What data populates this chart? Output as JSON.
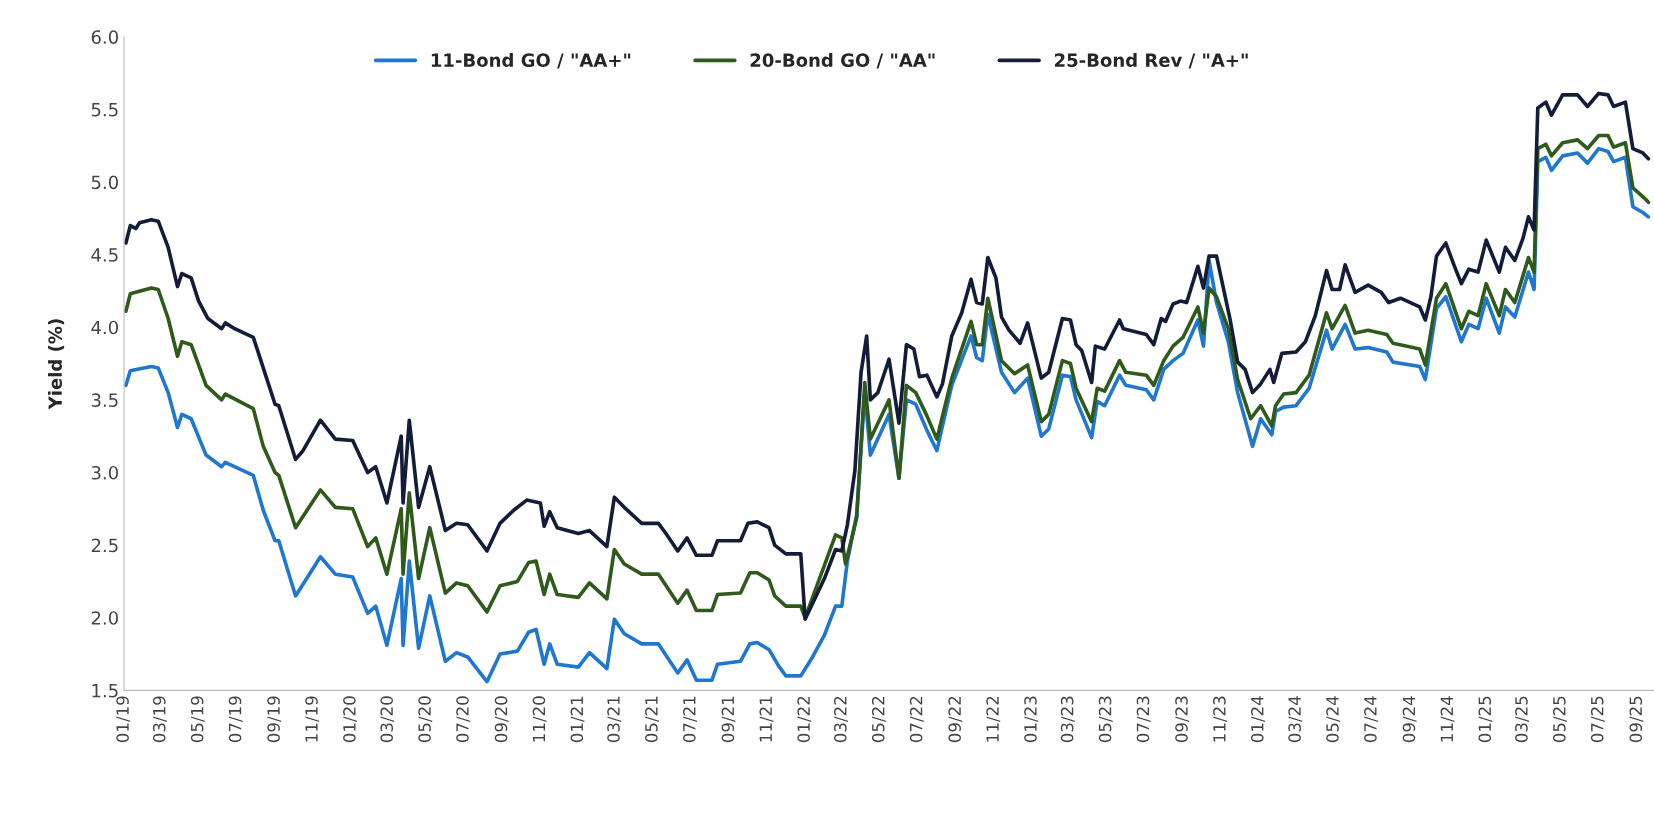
{
  "chart_data": {
    "type": "line",
    "ylabel": "Yield (%)",
    "xlim": [
      "2019-01-01",
      "2025-09-28"
    ],
    "ylim": [
      1.5,
      6.0
    ],
    "yticks": [
      {
        "value": 1.5,
        "label": "1.5"
      },
      {
        "value": 2.0,
        "label": "2.0"
      },
      {
        "value": 2.5,
        "label": "2.5"
      },
      {
        "value": 3.0,
        "label": "3.0"
      },
      {
        "value": 3.5,
        "label": "3.5"
      },
      {
        "value": 4.0,
        "label": "4.0"
      },
      {
        "value": 4.5,
        "label": "4.5"
      },
      {
        "value": 5.0,
        "label": "5.0"
      },
      {
        "value": 5.5,
        "label": "5.5"
      },
      {
        "value": 6.0,
        "label": "6.0"
      }
    ],
    "xticks": [
      {
        "value": "2019-01",
        "label": "01/19"
      },
      {
        "value": "2019-03",
        "label": "03/19"
      },
      {
        "value": "2019-05",
        "label": "05/19"
      },
      {
        "value": "2019-07",
        "label": "07/19"
      },
      {
        "value": "2019-09",
        "label": "09/19"
      },
      {
        "value": "2019-11",
        "label": "11/19"
      },
      {
        "value": "2020-01",
        "label": "01/20"
      },
      {
        "value": "2020-03",
        "label": "03/20"
      },
      {
        "value": "2020-05",
        "label": "05/20"
      },
      {
        "value": "2020-07",
        "label": "07/20"
      },
      {
        "value": "2020-09",
        "label": "09/20"
      },
      {
        "value": "2020-11",
        "label": "11/20"
      },
      {
        "value": "2021-01",
        "label": "01/21"
      },
      {
        "value": "2021-03",
        "label": "03/21"
      },
      {
        "value": "2021-05",
        "label": "05/21"
      },
      {
        "value": "2021-07",
        "label": "07/21"
      },
      {
        "value": "2021-09",
        "label": "09/21"
      },
      {
        "value": "2021-11",
        "label": "11/21"
      },
      {
        "value": "2022-01",
        "label": "01/22"
      },
      {
        "value": "2022-03",
        "label": "03/22"
      },
      {
        "value": "2022-05",
        "label": "05/22"
      },
      {
        "value": "2022-07",
        "label": "07/22"
      },
      {
        "value": "2022-09",
        "label": "09/22"
      },
      {
        "value": "2022-11",
        "label": "11/22"
      },
      {
        "value": "2023-01",
        "label": "01/23"
      },
      {
        "value": "2023-03",
        "label": "03/23"
      },
      {
        "value": "2023-05",
        "label": "05/23"
      },
      {
        "value": "2023-07",
        "label": "07/23"
      },
      {
        "value": "2023-09",
        "label": "09/23"
      },
      {
        "value": "2023-11",
        "label": "11/23"
      },
      {
        "value": "2024-01",
        "label": "01/24"
      },
      {
        "value": "2024-03",
        "label": "03/24"
      },
      {
        "value": "2024-05",
        "label": "05/24"
      },
      {
        "value": "2024-07",
        "label": "07/24"
      },
      {
        "value": "2024-09",
        "label": "09/24"
      },
      {
        "value": "2024-11",
        "label": "11/24"
      },
      {
        "value": "2025-01",
        "label": "01/25"
      },
      {
        "value": "2025-03",
        "label": "03/25"
      },
      {
        "value": "2025-05",
        "label": "05/25"
      },
      {
        "value": "2025-07",
        "label": "07/25"
      },
      {
        "value": "2025-09",
        "label": "09/25"
      }
    ],
    "grid": false,
    "legend": "top",
    "marker": "none",
    "line_style": "solid",
    "series": [
      {
        "name": "11-Bond GO / \"AA+\"",
        "color": "#1f77d0",
        "x": [
          "2019-01-04",
          "2019-01-11",
          "2019-02-14",
          "2019-02-25",
          "2019-03-13",
          "2019-03-28",
          "2019-04-04",
          "2019-04-19",
          "2019-05-13",
          "2019-06-07",
          "2019-06-13",
          "2019-07-28",
          "2019-08-13",
          "2019-09-01",
          "2019-09-07",
          "2019-10-04",
          "2019-11-13",
          "2019-12-07",
          "2020-01-04",
          "2020-01-28",
          "2020-02-10",
          "2020-02-28",
          "2020-03-22",
          "2020-03-25",
          "2020-04-04",
          "2020-04-19",
          "2020-05-07",
          "2020-06-01",
          "2020-06-19",
          "2020-07-07",
          "2020-08-07",
          "2020-08-28",
          "2020-09-25",
          "2020-10-13",
          "2020-10-25",
          "2020-11-07",
          "2020-11-16",
          "2020-11-28",
          "2021-01-01",
          "2021-01-19",
          "2021-02-16",
          "2021-02-28",
          "2021-03-16",
          "2021-04-13",
          "2021-05-10",
          "2021-06-10",
          "2021-06-25",
          "2021-07-10",
          "2021-08-04",
          "2021-08-13",
          "2021-09-19",
          "2021-10-04",
          "2021-10-16",
          "2021-11-04",
          "2021-11-19",
          "2021-12-01",
          "2021-12-25",
          "2022-01-13",
          "2022-02-01",
          "2022-02-19",
          "2022-03-01",
          "2022-03-10",
          "2022-03-25",
          "2022-04-07",
          "2022-04-16",
          "2022-05-16",
          "2022-06-01",
          "2022-06-13",
          "2022-06-28",
          "2022-07-16",
          "2022-08-01",
          "2022-08-25",
          "2022-09-25",
          "2022-10-04",
          "2022-10-13",
          "2022-10-22",
          "2022-11-13",
          "2022-12-04",
          "2022-12-25",
          "2023-01-16",
          "2023-01-28",
          "2023-02-19",
          "2023-03-04",
          "2023-03-13",
          "2023-04-07",
          "2023-04-16",
          "2023-04-28",
          "2023-05-22",
          "2023-06-01",
          "2023-07-04",
          "2023-07-16",
          "2023-08-01",
          "2023-08-16",
          "2023-09-01",
          "2023-09-25",
          "2023-10-04",
          "2023-10-13",
          "2023-10-25",
          "2023-11-13",
          "2023-11-28",
          "2023-12-22",
          "2024-01-04",
          "2024-01-22",
          "2024-01-28",
          "2024-02-10",
          "2024-03-01",
          "2024-03-22",
          "2024-04-19",
          "2024-04-28",
          "2024-05-19",
          "2024-06-04",
          "2024-06-25",
          "2024-07-25",
          "2024-08-04",
          "2024-09-16",
          "2024-09-25",
          "2024-10-13",
          "2024-10-28",
          "2024-11-22",
          "2024-12-04",
          "2024-12-19",
          "2025-01-01",
          "2025-01-22",
          "2025-02-01",
          "2025-02-16",
          "2025-03-10",
          "2025-03-19",
          "2025-03-25",
          "2025-04-07",
          "2025-04-16",
          "2025-05-04",
          "2025-05-28",
          "2025-06-13",
          "2025-07-01",
          "2025-07-16",
          "2025-07-25",
          "2025-08-13",
          "2025-08-25",
          "2025-09-10",
          "2025-09-19"
        ],
        "values": [
          3.6,
          3.7,
          3.73,
          3.72,
          3.55,
          3.31,
          3.4,
          3.37,
          3.12,
          3.04,
          3.07,
          2.98,
          2.74,
          2.53,
          2.53,
          2.15,
          2.42,
          2.3,
          2.28,
          2.03,
          2.08,
          1.81,
          2.27,
          1.81,
          2.39,
          1.79,
          2.15,
          1.7,
          1.76,
          1.73,
          1.56,
          1.75,
          1.77,
          1.9,
          1.92,
          1.68,
          1.82,
          1.68,
          1.66,
          1.76,
          1.65,
          1.99,
          1.89,
          1.82,
          1.82,
          1.62,
          1.71,
          1.57,
          1.57,
          1.68,
          1.7,
          1.82,
          1.83,
          1.78,
          1.67,
          1.6,
          1.6,
          1.73,
          1.88,
          2.08,
          2.08,
          2.39,
          2.71,
          3.55,
          3.12,
          3.4,
          2.96,
          3.5,
          3.47,
          3.29,
          3.15,
          3.6,
          3.94,
          3.79,
          3.77,
          4.09,
          3.69,
          3.55,
          3.65,
          3.25,
          3.3,
          3.67,
          3.66,
          3.5,
          3.24,
          3.49,
          3.46,
          3.67,
          3.6,
          3.57,
          3.5,
          3.71,
          3.77,
          3.82,
          4.05,
          3.87,
          4.46,
          4.17,
          3.9,
          3.55,
          3.18,
          3.37,
          3.26,
          3.42,
          3.45,
          3.46,
          3.58,
          3.98,
          3.85,
          4.02,
          3.85,
          3.86,
          3.83,
          3.76,
          3.73,
          3.64,
          4.13,
          4.21,
          3.9,
          4.02,
          3.99,
          4.2,
          3.96,
          4.14,
          4.07,
          4.38,
          4.26,
          5.14,
          5.17,
          5.08,
          5.18,
          5.2,
          5.13,
          5.23,
          5.21,
          5.14,
          5.17,
          4.83,
          4.79,
          4.76
        ]
      },
      {
        "name": "20-Bond GO / \"AA\"",
        "color": "#2f5a1c",
        "x": [
          "2019-01-04",
          "2019-01-11",
          "2019-02-14",
          "2019-02-25",
          "2019-03-13",
          "2019-03-28",
          "2019-04-04",
          "2019-04-19",
          "2019-05-13",
          "2019-06-07",
          "2019-06-13",
          "2019-07-28",
          "2019-08-13",
          "2019-09-01",
          "2019-09-07",
          "2019-10-04",
          "2019-11-13",
          "2019-12-07",
          "2020-01-04",
          "2020-01-28",
          "2020-02-10",
          "2020-02-28",
          "2020-03-22",
          "2020-03-25",
          "2020-04-04",
          "2020-04-19",
          "2020-05-07",
          "2020-06-01",
          "2020-06-19",
          "2020-07-07",
          "2020-08-07",
          "2020-08-28",
          "2020-09-25",
          "2020-10-13",
          "2020-10-25",
          "2020-11-07",
          "2020-11-16",
          "2020-11-28",
          "2021-01-01",
          "2021-01-19",
          "2021-02-16",
          "2021-02-28",
          "2021-03-16",
          "2021-04-13",
          "2021-05-10",
          "2021-06-10",
          "2021-06-25",
          "2021-07-10",
          "2021-08-04",
          "2021-08-13",
          "2021-09-19",
          "2021-10-04",
          "2021-10-16",
          "2021-11-04",
          "2021-11-13",
          "2021-12-01",
          "2021-12-25",
          "2022-01-01",
          "2022-02-01",
          "2022-02-19",
          "2022-03-01",
          "2022-03-07",
          "2022-03-25",
          "2022-04-07",
          "2022-04-16",
          "2022-05-16",
          "2022-06-01",
          "2022-06-13",
          "2022-06-28",
          "2022-07-16",
          "2022-08-01",
          "2022-08-25",
          "2022-09-25",
          "2022-10-04",
          "2022-10-13",
          "2022-10-22",
          "2022-11-13",
          "2022-12-04",
          "2022-12-25",
          "2023-01-16",
          "2023-01-28",
          "2023-02-19",
          "2023-03-04",
          "2023-03-13",
          "2023-04-07",
          "2023-04-16",
          "2023-04-28",
          "2023-05-22",
          "2023-06-01",
          "2023-07-04",
          "2023-07-16",
          "2023-08-01",
          "2023-08-16",
          "2023-09-01",
          "2023-09-25",
          "2023-10-04",
          "2023-10-13",
          "2023-10-25",
          "2023-11-13",
          "2023-11-28",
          "2023-12-19",
          "2024-01-04",
          "2024-01-22",
          "2024-01-28",
          "2024-02-10",
          "2024-03-01",
          "2024-03-22",
          "2024-04-19",
          "2024-04-28",
          "2024-05-19",
          "2024-06-04",
          "2024-06-25",
          "2024-07-25",
          "2024-08-04",
          "2024-09-16",
          "2024-09-25",
          "2024-10-13",
          "2024-10-28",
          "2024-11-22",
          "2024-12-04",
          "2024-12-19",
          "2025-01-01",
          "2025-01-22",
          "2025-02-01",
          "2025-02-16",
          "2025-03-10",
          "2025-03-19",
          "2025-03-25",
          "2025-04-07",
          "2025-04-16",
          "2025-05-04",
          "2025-05-28",
          "2025-06-13",
          "2025-07-01",
          "2025-07-16",
          "2025-07-25",
          "2025-08-13",
          "2025-08-25",
          "2025-09-10",
          "2025-09-19"
        ],
        "values": [
          4.11,
          4.23,
          4.27,
          4.26,
          4.06,
          3.8,
          3.9,
          3.88,
          3.6,
          3.5,
          3.54,
          3.44,
          3.18,
          3.0,
          2.98,
          2.62,
          2.88,
          2.76,
          2.75,
          2.49,
          2.55,
          2.3,
          2.75,
          2.3,
          2.86,
          2.27,
          2.62,
          2.17,
          2.24,
          2.22,
          2.04,
          2.22,
          2.25,
          2.38,
          2.39,
          2.16,
          2.3,
          2.16,
          2.14,
          2.24,
          2.13,
          2.47,
          2.37,
          2.3,
          2.3,
          2.1,
          2.19,
          2.05,
          2.05,
          2.16,
          2.17,
          2.31,
          2.31,
          2.26,
          2.15,
          2.08,
          2.08,
          2.0,
          2.36,
          2.57,
          2.55,
          2.37,
          2.69,
          3.62,
          3.23,
          3.5,
          2.96,
          3.6,
          3.55,
          3.39,
          3.23,
          3.65,
          4.04,
          3.88,
          3.88,
          4.2,
          3.77,
          3.68,
          3.74,
          3.35,
          3.4,
          3.77,
          3.75,
          3.58,
          3.35,
          3.58,
          3.56,
          3.77,
          3.69,
          3.67,
          3.6,
          3.77,
          3.87,
          3.93,
          4.14,
          3.96,
          4.27,
          4.21,
          3.99,
          3.64,
          3.37,
          3.46,
          3.32,
          3.46,
          3.54,
          3.55,
          3.67,
          4.1,
          3.99,
          4.15,
          3.96,
          3.98,
          3.95,
          3.89,
          3.85,
          3.74,
          4.2,
          4.3,
          3.99,
          4.11,
          4.08,
          4.3,
          4.08,
          4.26,
          4.17,
          4.48,
          4.38,
          5.23,
          5.26,
          5.18,
          5.27,
          5.29,
          5.23,
          5.32,
          5.32,
          5.24,
          5.27,
          4.96,
          4.9,
          4.86
        ]
      },
      {
        "name": "25-Bond Rev / \"A+\"",
        "color": "#131c38",
        "x": [
          "2019-01-04",
          "2019-01-11",
          "2019-01-20",
          "2019-01-26",
          "2019-02-14",
          "2019-02-25",
          "2019-03-13",
          "2019-03-28",
          "2019-04-04",
          "2019-04-19",
          "2019-05-01",
          "2019-05-16",
          "2019-06-07",
          "2019-06-13",
          "2019-06-28",
          "2019-07-28",
          "2019-08-13",
          "2019-09-01",
          "2019-09-07",
          "2019-10-04",
          "2019-10-16",
          "2019-11-13",
          "2019-12-07",
          "2020-01-04",
          "2020-01-28",
          "2020-02-10",
          "2020-02-28",
          "2020-03-22",
          "2020-03-25",
          "2020-04-04",
          "2020-04-19",
          "2020-05-07",
          "2020-06-01",
          "2020-06-19",
          "2020-07-07",
          "2020-08-07",
          "2020-08-28",
          "2020-09-19",
          "2020-10-10",
          "2020-11-01",
          "2020-11-07",
          "2020-11-16",
          "2020-11-28",
          "2021-01-01",
          "2021-01-19",
          "2021-02-16",
          "2021-02-28",
          "2021-03-16",
          "2021-04-13",
          "2021-05-10",
          "2021-05-22",
          "2021-06-10",
          "2021-06-25",
          "2021-07-10",
          "2021-08-04",
          "2021-08-13",
          "2021-09-19",
          "2021-10-01",
          "2021-10-16",
          "2021-11-04",
          "2021-11-13",
          "2021-12-01",
          "2021-12-25",
          "2022-01-01",
          "2022-02-01",
          "2022-02-19",
          "2022-03-01",
          "2022-03-10",
          "2022-03-22",
          "2022-04-01",
          "2022-04-10",
          "2022-04-16",
          "2022-04-28",
          "2022-05-16",
          "2022-06-01",
          "2022-06-13",
          "2022-06-25",
          "2022-07-04",
          "2022-07-16",
          "2022-08-01",
          "2022-08-10",
          "2022-08-25",
          "2022-09-10",
          "2022-09-25",
          "2022-10-04",
          "2022-10-13",
          "2022-10-22",
          "2022-11-04",
          "2022-11-13",
          "2022-11-25",
          "2022-12-13",
          "2022-12-25",
          "2023-01-16",
          "2023-01-28",
          "2023-02-19",
          "2023-03-04",
          "2023-03-13",
          "2023-03-22",
          "2023-04-07",
          "2023-04-13",
          "2023-04-28",
          "2023-05-22",
          "2023-05-28",
          "2023-07-04",
          "2023-07-16",
          "2023-07-28",
          "2023-08-04",
          "2023-08-16",
          "2023-08-28",
          "2023-09-07",
          "2023-09-25",
          "2023-10-04",
          "2023-10-13",
          "2023-10-25",
          "2023-11-01",
          "2023-11-16",
          "2023-11-28",
          "2023-12-10",
          "2023-12-22",
          "2024-01-04",
          "2024-01-19",
          "2024-01-25",
          "2024-02-07",
          "2024-03-01",
          "2024-03-16",
          "2024-04-01",
          "2024-04-19",
          "2024-04-28",
          "2024-05-10",
          "2024-05-19",
          "2024-06-04",
          "2024-06-25",
          "2024-07-16",
          "2024-07-28",
          "2024-08-16",
          "2024-09-16",
          "2024-09-25",
          "2024-10-04",
          "2024-10-13",
          "2024-10-28",
          "2024-11-10",
          "2024-11-22",
          "2024-12-04",
          "2024-12-19",
          "2025-01-01",
          "2025-01-22",
          "2025-02-01",
          "2025-02-16",
          "2025-03-01",
          "2025-03-10",
          "2025-03-19",
          "2025-03-25",
          "2025-04-07",
          "2025-04-16",
          "2025-05-04",
          "2025-05-28",
          "2025-06-13",
          "2025-07-01",
          "2025-07-16",
          "2025-07-25",
          "2025-08-13",
          "2025-08-25",
          "2025-09-10",
          "2025-09-19"
        ],
        "values": [
          4.58,
          4.7,
          4.68,
          4.72,
          4.74,
          4.73,
          4.55,
          4.28,
          4.37,
          4.34,
          4.18,
          4.06,
          3.99,
          4.03,
          3.99,
          3.93,
          3.72,
          3.47,
          3.46,
          3.09,
          3.15,
          3.36,
          3.23,
          3.22,
          3.0,
          3.04,
          2.79,
          3.25,
          2.79,
          3.36,
          2.76,
          3.04,
          2.6,
          2.65,
          2.64,
          2.46,
          2.65,
          2.74,
          2.81,
          2.79,
          2.63,
          2.73,
          2.62,
          2.58,
          2.6,
          2.49,
          2.83,
          2.76,
          2.65,
          2.65,
          2.58,
          2.46,
          2.55,
          2.43,
          2.43,
          2.53,
          2.53,
          2.65,
          2.66,
          2.62,
          2.5,
          2.44,
          2.44,
          1.99,
          2.27,
          2.47,
          2.46,
          2.64,
          3.01,
          3.69,
          3.94,
          3.5,
          3.55,
          3.78,
          3.34,
          3.88,
          3.85,
          3.66,
          3.67,
          3.52,
          3.61,
          3.94,
          4.1,
          4.33,
          4.17,
          4.16,
          4.48,
          4.34,
          4.07,
          3.98,
          3.89,
          4.03,
          3.65,
          3.69,
          4.06,
          4.05,
          3.88,
          3.84,
          3.62,
          3.87,
          3.85,
          4.05,
          3.99,
          3.95,
          3.88,
          4.06,
          4.04,
          4.16,
          4.18,
          4.17,
          4.42,
          4.27,
          4.49,
          4.49,
          4.35,
          4.05,
          3.76,
          3.71,
          3.55,
          3.61,
          3.71,
          3.62,
          3.82,
          3.83,
          3.9,
          4.08,
          4.39,
          4.26,
          4.26,
          4.43,
          4.24,
          4.29,
          4.24,
          4.17,
          4.2,
          4.14,
          4.05,
          4.21,
          4.49,
          4.58,
          4.43,
          4.3,
          4.4,
          4.38,
          4.6,
          4.38,
          4.55,
          4.46,
          4.61,
          4.76,
          4.67,
          5.51,
          5.55,
          5.46,
          5.6,
          5.6,
          5.52,
          5.61,
          5.6,
          5.52,
          5.55,
          5.23,
          5.2,
          5.16
        ]
      }
    ]
  }
}
